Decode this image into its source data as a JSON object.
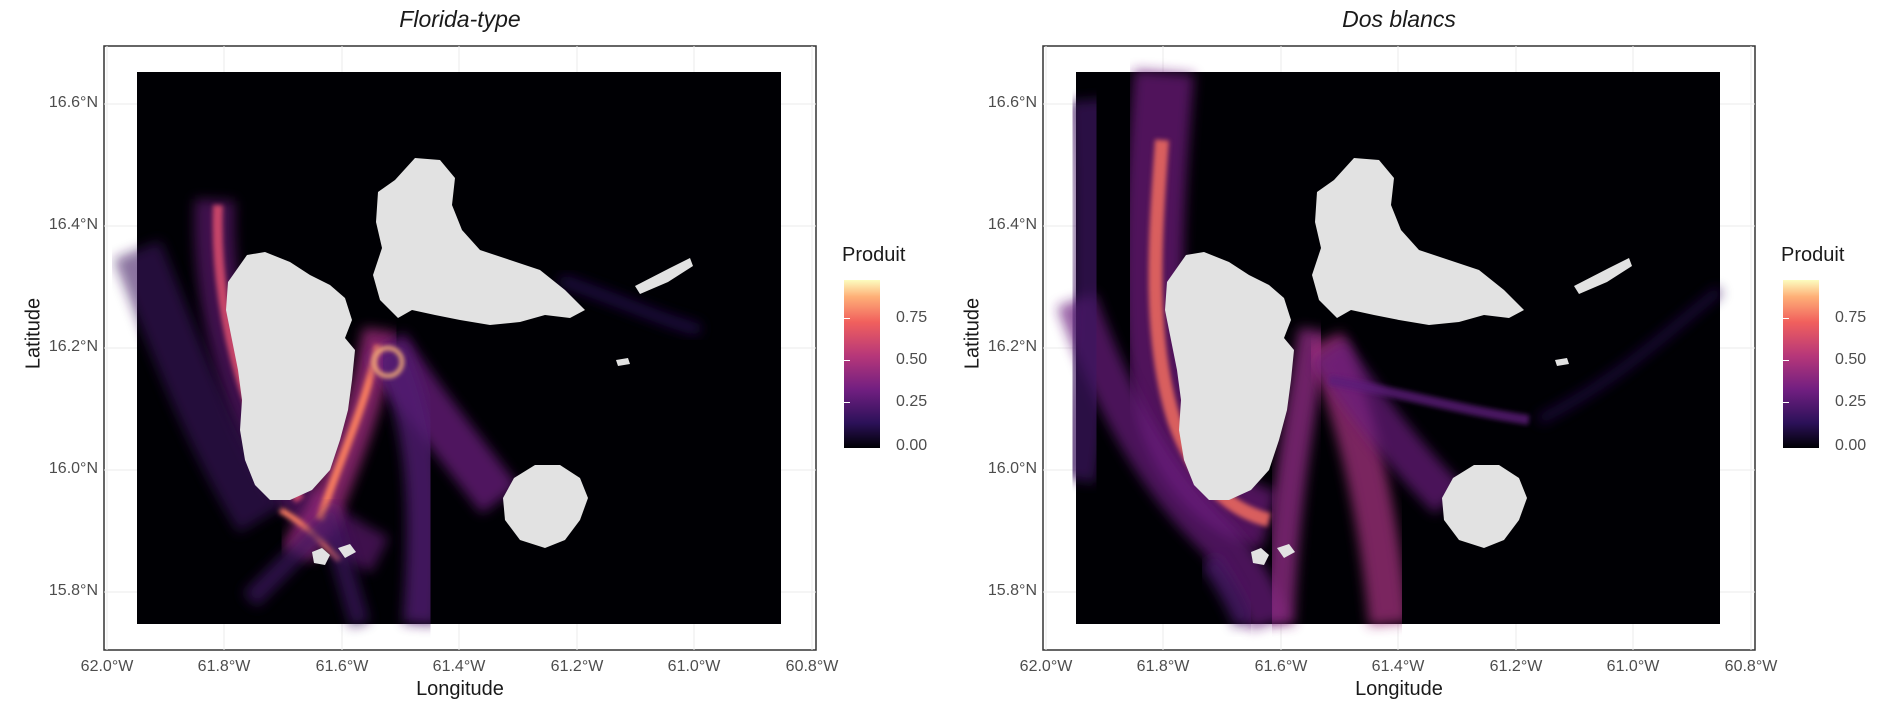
{
  "panels": [
    {
      "title": "Florida-type"
    },
    {
      "title": "Dos blancs"
    }
  ],
  "axes": {
    "xlabel": "Longitude",
    "ylabel": "Latitude",
    "x_ticks": [
      "62.0°W",
      "61.8°W",
      "61.6°W",
      "61.4°W",
      "61.2°W",
      "61.0°W",
      "60.8°W"
    ],
    "y_ticks": [
      "16.6°N",
      "16.4°N",
      "16.2°N",
      "16.0°N",
      "15.8°N"
    ]
  },
  "legend": {
    "title": "Produit",
    "ticks": [
      "0.75",
      "0.50",
      "0.25",
      "0.00"
    ],
    "colors": [
      "#000004",
      "#2c1159",
      "#721f81",
      "#b73779",
      "#f1605d",
      "#feaf77",
      "#fcfdbf"
    ]
  }
}
